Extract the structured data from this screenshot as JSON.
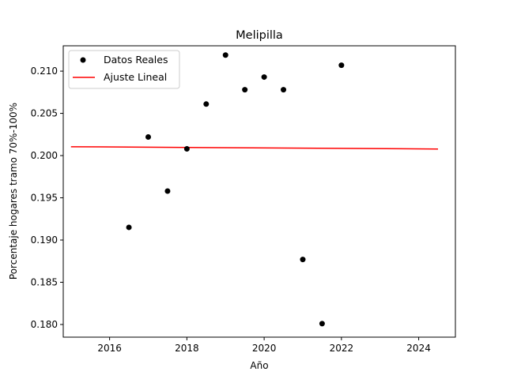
{
  "chart_data": {
    "type": "scatter",
    "title": "Melipilla",
    "xlabel": "Año",
    "ylabel": "Porcentaje hogares tramo 70%-100%",
    "xlim": [
      2014.8,
      2024.95
    ],
    "ylim": [
      0.1785,
      0.213
    ],
    "xticks": [
      2016,
      2018,
      2020,
      2022,
      2024
    ],
    "xtick_labels": [
      "2016",
      "2018",
      "2020",
      "2022",
      "2024"
    ],
    "yticks": [
      0.18,
      0.185,
      0.19,
      0.195,
      0.2,
      0.205,
      0.21
    ],
    "ytick_labels": [
      "0.180",
      "0.185",
      "0.190",
      "0.195",
      "0.200",
      "0.205",
      "0.210"
    ],
    "grid": false,
    "legend_position": "top-left",
    "series": [
      {
        "name": "Datos Reales",
        "kind": "scatter",
        "color": "#000000",
        "x": [
          2016.5,
          2017.0,
          2017.5,
          2018.0,
          2018.5,
          2019.0,
          2019.5,
          2020.0,
          2020.5,
          2021.0,
          2021.5,
          2022.0
        ],
        "y": [
          0.1915,
          0.2022,
          0.1958,
          0.2008,
          0.2061,
          0.2119,
          0.2078,
          0.2093,
          0.2078,
          0.1877,
          0.1801,
          0.2107
        ]
      },
      {
        "name": "Ajuste Lineal",
        "kind": "line",
        "color": "#ff0000",
        "x": [
          2015.0,
          2024.5
        ],
        "y": [
          0.20105,
          0.20078
        ]
      }
    ]
  }
}
